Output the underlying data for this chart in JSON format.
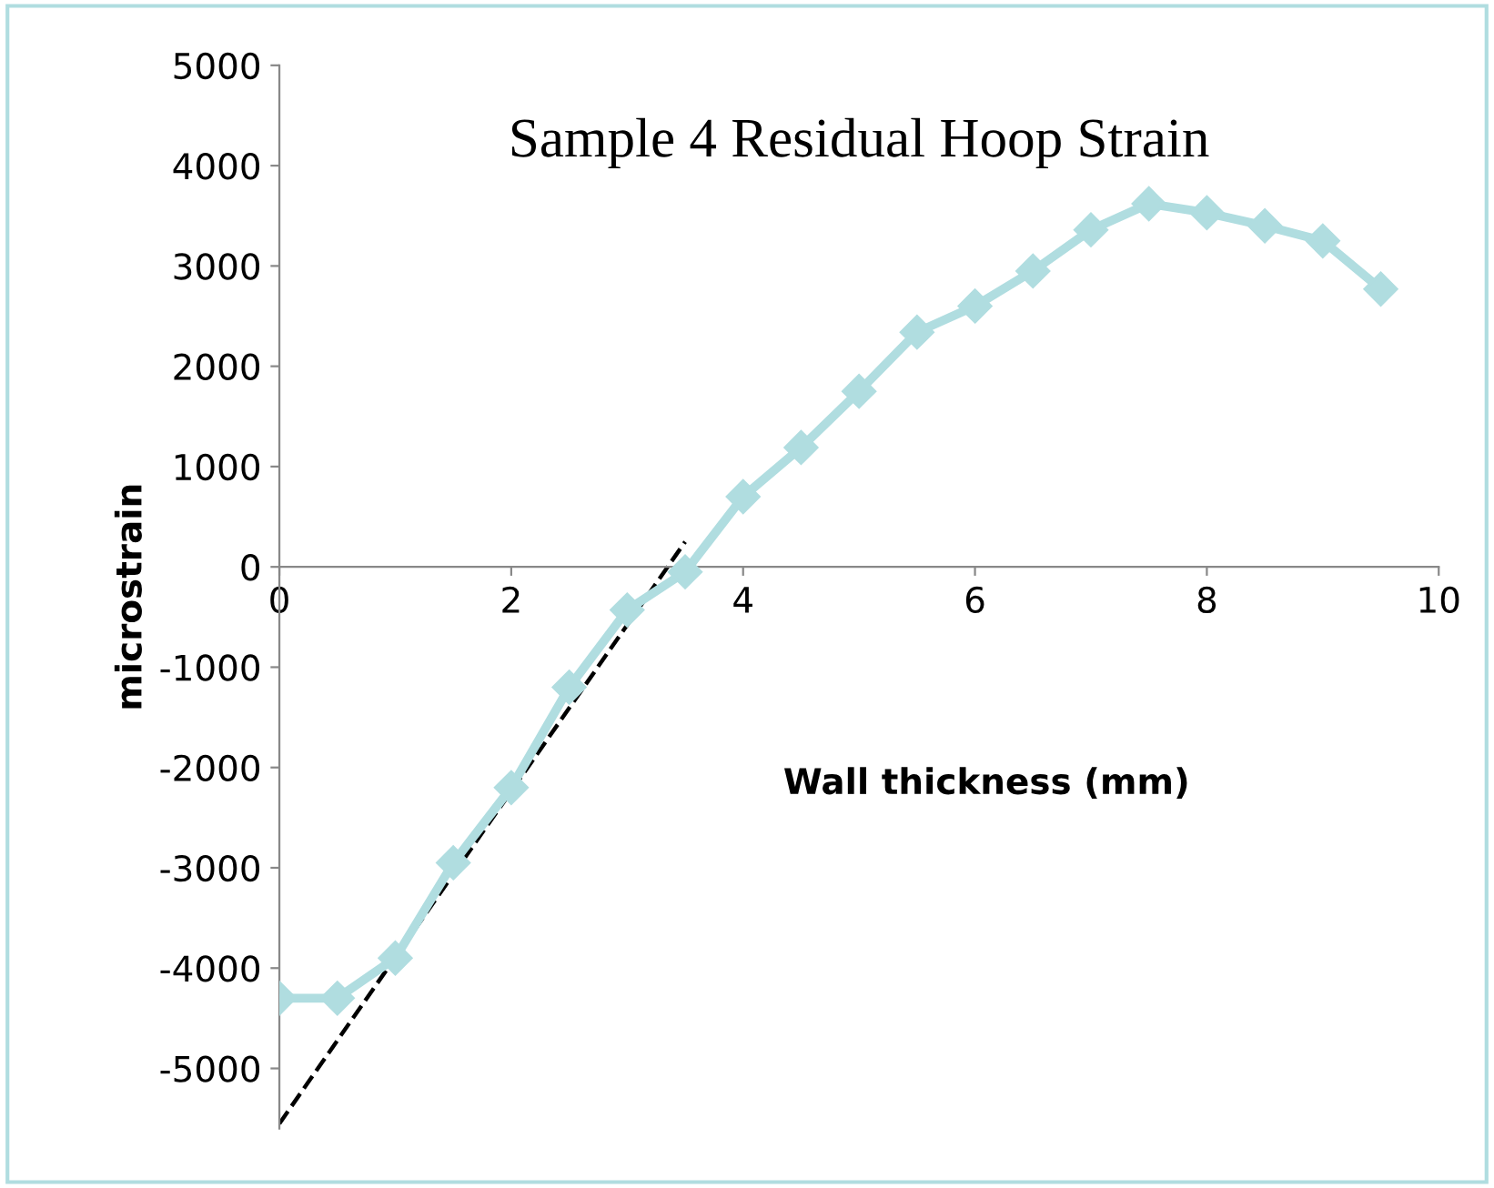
{
  "chart_data": {
    "type": "line",
    "title": "Sample 4 Residual Hoop Strain",
    "xlabel": "Wall thickness (mm)",
    "ylabel": "microstrain",
    "x": [
      0,
      0.5,
      1,
      1.5,
      2,
      2.5,
      3,
      3.5,
      4,
      4.5,
      5,
      5.5,
      6,
      6.5,
      7,
      7.5,
      8,
      8.5,
      9,
      9.5
    ],
    "series": [
      {
        "color": "#b0dde0",
        "marker": "diamond",
        "line_style": "solid",
        "values": [
          -4300,
          -4300,
          -3900,
          -2950,
          -2200,
          -1200,
          -430,
          -50,
          700,
          1190,
          1750,
          2340,
          2600,
          2950,
          3360,
          3620,
          3530,
          3400,
          3250,
          2770
        ]
      },
      {
        "color": "#000000",
        "marker": "none",
        "line_style": "dashed",
        "x": [
          0,
          3.5
        ],
        "values": [
          -5550,
          250
        ]
      }
    ],
    "xlim": [
      0,
      10
    ],
    "xticks": [
      0,
      2,
      4,
      6,
      8,
      10
    ],
    "ylim": [
      -5600,
      5000
    ],
    "yticks": [
      -5000,
      -4000,
      -3000,
      -2000,
      -1000,
      0,
      1000,
      2000,
      3000,
      4000,
      5000
    ],
    "grid": false,
    "legend": false
  }
}
